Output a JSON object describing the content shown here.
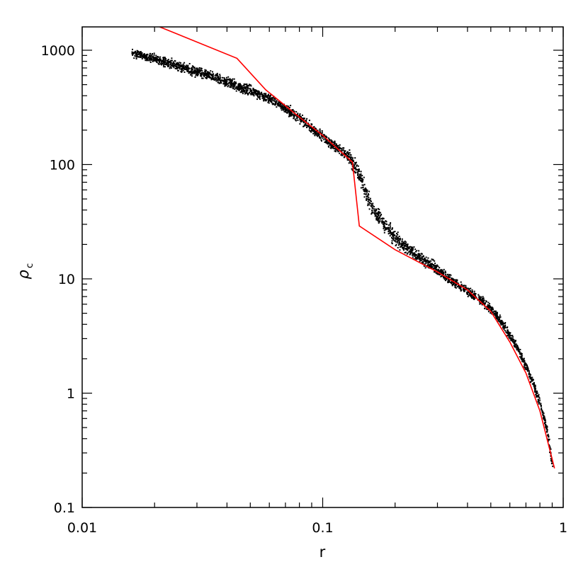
{
  "chart_data": {
    "type": "scatter",
    "title": "",
    "xlabel": "r",
    "ylabel": "ρ",
    "ylabel_subscript": "c",
    "xscale": "log",
    "yscale": "log",
    "xlim": [
      0.01,
      1
    ],
    "ylim": [
      0.1,
      1600
    ],
    "grid": false,
    "legend": "none",
    "x_ticks": [
      {
        "value": 0.01,
        "label": "0.01"
      },
      {
        "value": 0.1,
        "label": "0.1"
      },
      {
        "value": 1,
        "label": "1"
      }
    ],
    "y_ticks": [
      {
        "value": 0.1,
        "label": "0.1"
      },
      {
        "value": 1,
        "label": "1"
      },
      {
        "value": 10,
        "label": "10"
      },
      {
        "value": 100,
        "label": "100"
      },
      {
        "value": 1000,
        "label": "1000"
      }
    ],
    "series": [
      {
        "mark": "points",
        "color": "#000000",
        "x": [
          0.016,
          0.019,
          0.022,
          0.026,
          0.03,
          0.035,
          0.04,
          0.045,
          0.05,
          0.055,
          0.06,
          0.07,
          0.08,
          0.09,
          0.1,
          0.11,
          0.12,
          0.13,
          0.14,
          0.15,
          0.16,
          0.18,
          0.2,
          0.22,
          0.25,
          0.3,
          0.35,
          0.4,
          0.45,
          0.5,
          0.55,
          0.6,
          0.65,
          0.7,
          0.75,
          0.8,
          0.85,
          0.9
        ],
        "y": [
          950,
          880,
          800,
          720,
          650,
          590,
          530,
          480,
          450,
          410,
          380,
          310,
          255,
          210,
          175,
          150,
          130,
          112,
          85,
          58,
          42,
          30,
          23,
          19,
          16,
          12,
          9.5,
          7.8,
          6.6,
          5.5,
          4.2,
          3.2,
          2.4,
          1.7,
          1.2,
          0.8,
          0.5,
          0.22
        ],
        "spread_y": [
          0.05,
          0.05,
          0.06,
          0.06,
          0.06,
          0.06,
          0.06,
          0.06,
          0.06,
          0.06,
          0.06,
          0.06,
          0.06,
          0.06,
          0.06,
          0.06,
          0.07,
          0.08,
          0.1,
          0.1,
          0.1,
          0.1,
          0.1,
          0.08,
          0.07,
          0.07,
          0.06,
          0.06,
          0.06,
          0.06,
          0.05,
          0.05,
          0.05,
          0.05,
          0.05,
          0.05,
          0.05,
          0.04
        ]
      },
      {
        "mark": "line",
        "color": "#ff0000",
        "x": [
          0.021,
          0.044,
          0.058,
          0.08,
          0.1,
          0.133,
          0.142,
          0.2,
          0.3,
          0.4,
          0.5,
          0.6,
          0.7,
          0.8,
          0.92
        ],
        "y": [
          1600,
          850,
          450,
          260,
          180,
          105,
          29,
          18,
          11.5,
          8,
          5.2,
          2.8,
          1.5,
          0.7,
          0.22
        ]
      }
    ]
  }
}
